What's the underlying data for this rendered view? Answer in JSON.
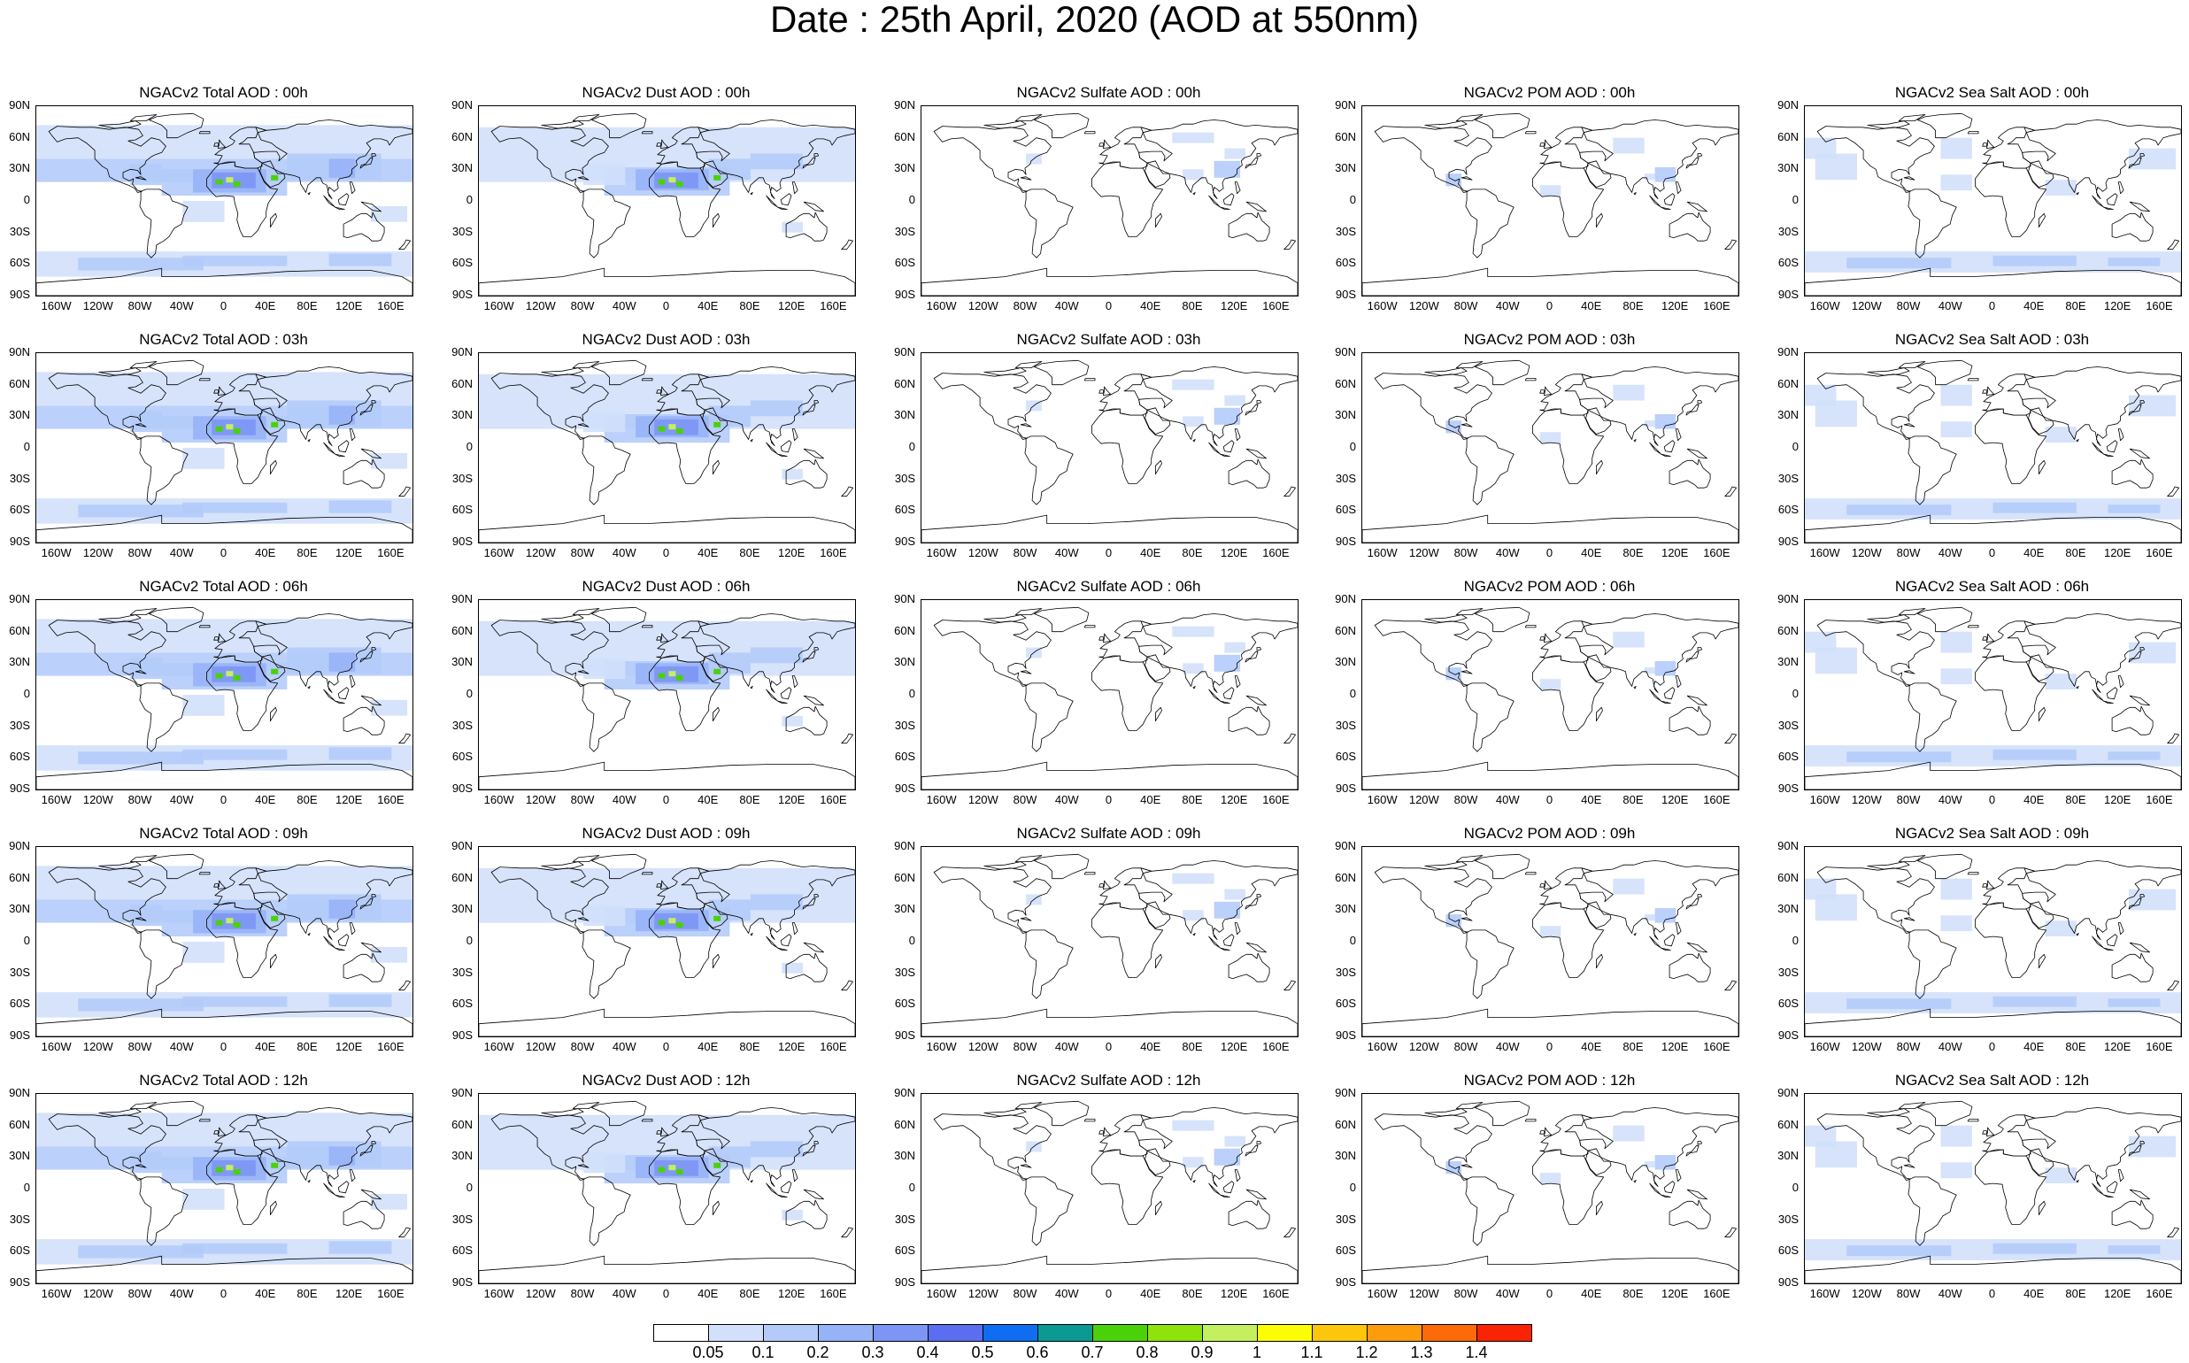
{
  "title": "Date : 25th April, 2020 (AOD at 550nm)",
  "lat_ticks": [
    "90N",
    "60N",
    "30N",
    "0",
    "30S",
    "60S",
    "90S"
  ],
  "lon_ticks": [
    "160W",
    "120W",
    "80W",
    "40W",
    "0",
    "40E",
    "80E",
    "120E",
    "160E"
  ],
  "panel_titles": [
    [
      "NGACv2 Total AOD : 00h",
      "NGACv2 Dust AOD : 00h",
      "NGACv2 Sulfate AOD : 00h",
      "NGACv2 POM AOD : 00h",
      "NGACv2 Sea Salt AOD : 00h"
    ],
    [
      "NGACv2 Total AOD : 03h",
      "NGACv2 Dust AOD : 03h",
      "NGACv2 Sulfate AOD : 03h",
      "NGACv2 POM AOD : 03h",
      "NGACv2 Sea Salt AOD : 03h"
    ],
    [
      "NGACv2 Total AOD : 06h",
      "NGACv2 Dust AOD : 06h",
      "NGACv2 Sulfate AOD : 06h",
      "NGACv2 POM AOD : 06h",
      "NGACv2 Sea Salt AOD : 06h"
    ],
    [
      "NGACv2 Total AOD : 09h",
      "NGACv2 Dust AOD : 09h",
      "NGACv2 Sulfate AOD : 09h",
      "NGACv2 POM AOD : 09h",
      "NGACv2 Sea Salt  AOD : 09h"
    ],
    [
      "NGACv2 Total AOD : 12h",
      "NGACv2 Dust AOD : 12h",
      "NGACv2 Sulfate AOD : 12h",
      "NGACv2 POM  AOD : 12h",
      "NGACv2 Sea Salt  AOD : 12h"
    ]
  ],
  "colorbar": {
    "labels": [
      "0.05",
      "0.1",
      "0.2",
      "0.3",
      "0.4",
      "0.5",
      "0.6",
      "0.7",
      "0.8",
      "0.9",
      "1",
      "1.1",
      "1.2",
      "1.3",
      "1.4"
    ],
    "colors": [
      "#ffffff",
      "#d2e0fb",
      "#b4cbfa",
      "#97b3f7",
      "#7d95f4",
      "#5b6ef0",
      "#0f6df2",
      "#0a9a93",
      "#4ad10a",
      "#8fe30c",
      "#c4f060",
      "#fcfc07",
      "#fcc60a",
      "#fc9c0c",
      "#fc6a09",
      "#fa2305"
    ]
  },
  "aod_colors": {
    "c1": "#d2e0fb",
    "c2": "#b4cbfa",
    "c3": "#97b3f7",
    "c4": "#7d95f4",
    "c5": "#5b6ef0",
    "dust_hot": "#4ad10a",
    "dust_hotter": "#c4f060"
  }
}
